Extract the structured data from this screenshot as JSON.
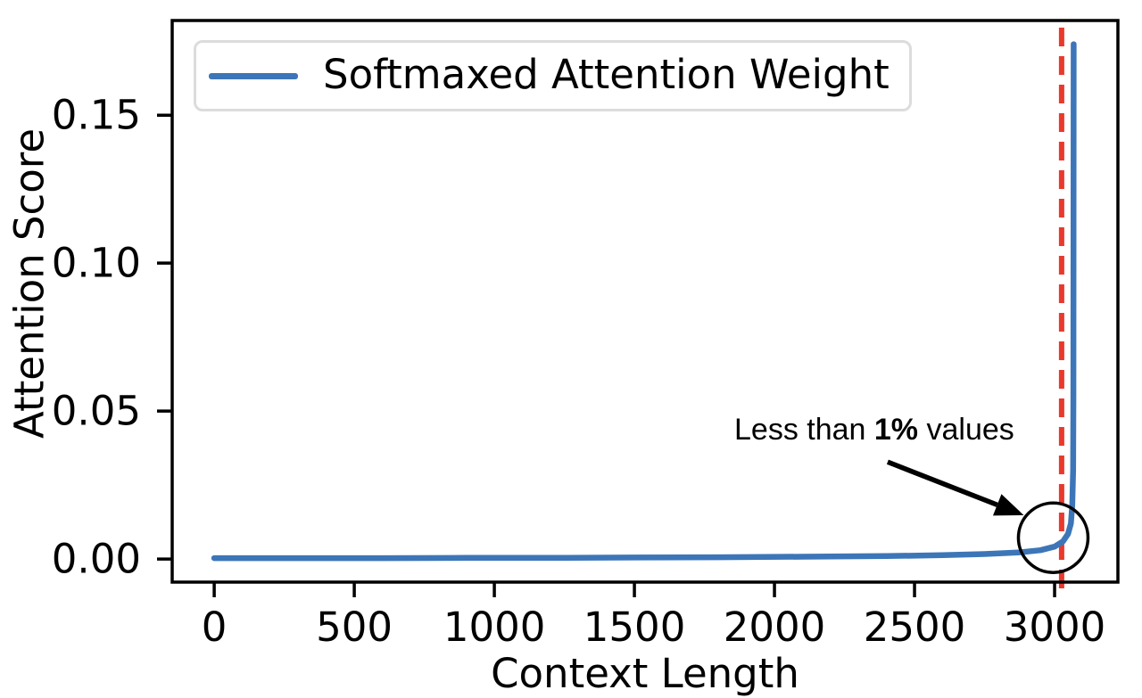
{
  "figure": {
    "background": "#ffffff"
  },
  "chart_data": {
    "type": "line",
    "title": "",
    "xlabel": "Context Length",
    "ylabel": "Attention Score",
    "xlim": [
      -150,
      3226
    ],
    "ylim": [
      -0.0078,
      0.182
    ],
    "grid": false,
    "x_tick_values": [
      0,
      500,
      1000,
      1500,
      2000,
      2500,
      3000
    ],
    "x_tick_labels": [
      "0",
      "500",
      "1000",
      "1500",
      "2000",
      "2500",
      "3000"
    ],
    "y_tick_values": [
      0.0,
      0.05,
      0.1,
      0.15
    ],
    "y_tick_labels": [
      "0.00",
      "0.05",
      "0.10",
      "0.15"
    ],
    "series": [
      {
        "name": "Softmaxed Attention Weight",
        "color": "#3d76b8",
        "points": [
          [
            0,
            0.0003
          ],
          [
            300,
            0.0003
          ],
          [
            600,
            0.0003
          ],
          [
            900,
            0.0004
          ],
          [
            1200,
            0.0004
          ],
          [
            1500,
            0.0005
          ],
          [
            1800,
            0.0006
          ],
          [
            2100,
            0.0008
          ],
          [
            2400,
            0.001
          ],
          [
            2600,
            0.0013
          ],
          [
            2750,
            0.0017
          ],
          [
            2870,
            0.0022
          ],
          [
            2950,
            0.003
          ],
          [
            3000,
            0.0042
          ],
          [
            3030,
            0.006
          ],
          [
            3048,
            0.0085
          ],
          [
            3058,
            0.012
          ],
          [
            3063,
            0.018
          ],
          [
            3066,
            0.03
          ],
          [
            3067,
            0.055
          ],
          [
            3068,
            0.174
          ]
        ]
      }
    ],
    "vline": {
      "x": 3025,
      "color": "#e8392c",
      "style": "dashed"
    },
    "legend": {
      "label": "Softmaxed Attention Weight",
      "location": "upper left"
    },
    "annotation": {
      "text_prefix": "Less than ",
      "text_bold": "1%",
      "text_suffix": " values",
      "arrow_start": [
        2404,
        0.0328
      ],
      "arrow_tip": [
        2890,
        0.0148
      ],
      "circle_center": [
        2995,
        0.0072
      ],
      "circle_radius_px": 39,
      "color": "#000000"
    }
  }
}
